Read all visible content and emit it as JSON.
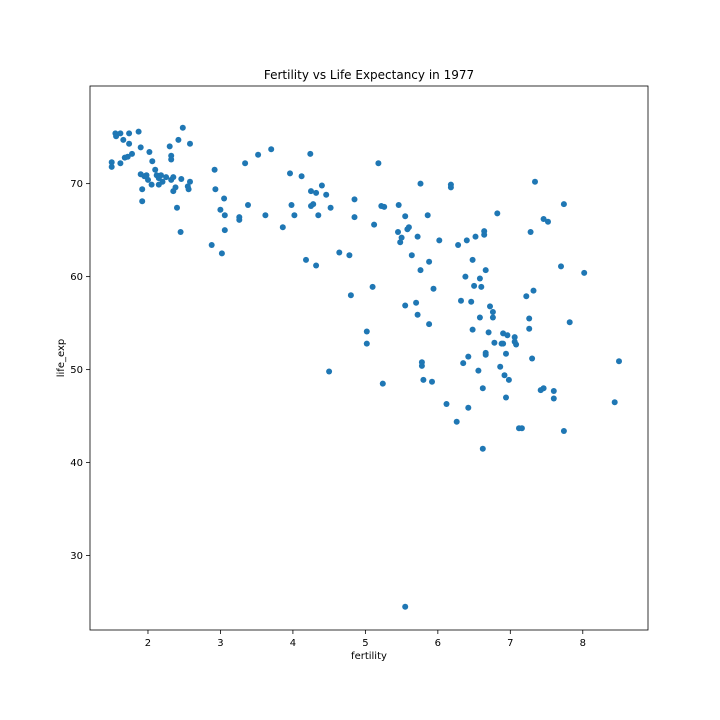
{
  "chart_data": {
    "type": "scatter",
    "title": "Fertility vs Life Expectancy in 1977",
    "xlabel": "fertility",
    "ylabel": "life_exp",
    "xlim": [
      1.2,
      8.9
    ],
    "ylim": [
      22,
      80.5
    ],
    "xticks": [
      2,
      3,
      4,
      5,
      6,
      7,
      8
    ],
    "yticks": [
      30,
      40,
      50,
      60,
      70
    ],
    "grid": false,
    "legend": false,
    "marker_color": "#1f77b4",
    "points": [
      [
        1.5,
        72.3
      ],
      [
        1.5,
        71.8
      ],
      [
        1.55,
        75.4
      ],
      [
        1.56,
        75.1
      ],
      [
        1.62,
        75.4
      ],
      [
        1.62,
        72.2
      ],
      [
        1.66,
        74.7
      ],
      [
        1.68,
        72.8
      ],
      [
        1.72,
        72.9
      ],
      [
        1.74,
        75.4
      ],
      [
        1.74,
        74.3
      ],
      [
        1.78,
        73.2
      ],
      [
        1.87,
        75.6
      ],
      [
        1.9,
        73.9
      ],
      [
        1.9,
        71.0
      ],
      [
        1.92,
        69.4
      ],
      [
        1.92,
        68.1
      ],
      [
        1.95,
        70.8
      ],
      [
        1.98,
        70.9
      ],
      [
        2.0,
        70.4
      ],
      [
        2.02,
        73.4
      ],
      [
        2.05,
        69.9
      ],
      [
        2.06,
        72.4
      ],
      [
        2.1,
        71.5
      ],
      [
        2.12,
        70.9
      ],
      [
        2.15,
        70.6
      ],
      [
        2.15,
        69.9
      ],
      [
        2.18,
        70.9
      ],
      [
        2.2,
        70.2
      ],
      [
        2.25,
        70.7
      ],
      [
        2.3,
        74.0
      ],
      [
        2.32,
        73.0
      ],
      [
        2.32,
        72.6
      ],
      [
        2.32,
        70.4
      ],
      [
        2.35,
        69.2
      ],
      [
        2.35,
        70.7
      ],
      [
        2.38,
        69.6
      ],
      [
        2.4,
        67.4
      ],
      [
        2.42,
        74.7
      ],
      [
        2.45,
        64.8
      ],
      [
        2.48,
        76.0
      ],
      [
        2.46,
        70.5
      ],
      [
        2.55,
        69.7
      ],
      [
        2.56,
        69.4
      ],
      [
        2.58,
        74.3
      ],
      [
        2.58,
        70.2
      ],
      [
        2.88,
        63.4
      ],
      [
        2.92,
        71.5
      ],
      [
        2.93,
        69.4
      ],
      [
        3.0,
        67.2
      ],
      [
        3.02,
        62.5
      ],
      [
        3.05,
        68.4
      ],
      [
        3.06,
        66.6
      ],
      [
        3.06,
        65.0
      ],
      [
        3.26,
        66.4
      ],
      [
        3.26,
        66.1
      ],
      [
        3.34,
        72.2
      ],
      [
        3.38,
        67.7
      ],
      [
        3.52,
        73.1
      ],
      [
        3.62,
        66.6
      ],
      [
        3.7,
        73.7
      ],
      [
        3.86,
        65.3
      ],
      [
        3.96,
        71.1
      ],
      [
        3.98,
        67.7
      ],
      [
        4.02,
        66.6
      ],
      [
        4.12,
        70.8
      ],
      [
        4.18,
        61.8
      ],
      [
        4.24,
        73.2
      ],
      [
        4.25,
        69.2
      ],
      [
        4.25,
        67.6
      ],
      [
        4.28,
        67.8
      ],
      [
        4.32,
        61.2
      ],
      [
        4.32,
        69.0
      ],
      [
        4.35,
        66.6
      ],
      [
        4.4,
        69.8
      ],
      [
        4.46,
        68.8
      ],
      [
        4.5,
        49.8
      ],
      [
        4.52,
        67.4
      ],
      [
        4.64,
        62.6
      ],
      [
        4.78,
        62.3
      ],
      [
        4.8,
        58.0
      ],
      [
        4.85,
        68.3
      ],
      [
        4.85,
        66.4
      ],
      [
        5.02,
        54.1
      ],
      [
        5.02,
        52.8
      ],
      [
        5.1,
        58.9
      ],
      [
        5.12,
        65.6
      ],
      [
        5.18,
        72.2
      ],
      [
        5.22,
        67.6
      ],
      [
        5.24,
        48.5
      ],
      [
        5.26,
        67.5
      ],
      [
        5.45,
        64.8
      ],
      [
        5.46,
        67.7
      ],
      [
        5.48,
        63.7
      ],
      [
        5.5,
        64.2
      ],
      [
        5.55,
        66.5
      ],
      [
        5.55,
        56.9
      ],
      [
        5.58,
        65.1
      ],
      [
        5.6,
        65.3
      ],
      [
        5.64,
        62.3
      ],
      [
        5.7,
        57.2
      ],
      [
        5.72,
        64.3
      ],
      [
        5.72,
        55.9
      ],
      [
        5.76,
        70.0
      ],
      [
        5.76,
        60.7
      ],
      [
        5.78,
        50.4
      ],
      [
        5.78,
        50.8
      ],
      [
        5.8,
        48.9
      ],
      [
        5.86,
        66.6
      ],
      [
        5.88,
        54.9
      ],
      [
        5.88,
        61.6
      ],
      [
        5.92,
        48.7
      ],
      [
        5.94,
        58.7
      ],
      [
        6.02,
        63.9
      ],
      [
        6.12,
        46.3
      ],
      [
        6.18,
        69.9
      ],
      [
        6.18,
        69.6
      ],
      [
        6.26,
        44.4
      ],
      [
        6.28,
        63.4
      ],
      [
        6.32,
        57.4
      ],
      [
        6.35,
        50.7
      ],
      [
        6.38,
        60.0
      ],
      [
        6.4,
        63.9
      ],
      [
        6.42,
        45.9
      ],
      [
        6.42,
        51.4
      ],
      [
        6.46,
        57.3
      ],
      [
        6.48,
        54.3
      ],
      [
        6.48,
        61.8
      ],
      [
        6.5,
        59.0
      ],
      [
        6.52,
        64.3
      ],
      [
        6.56,
        49.9
      ],
      [
        6.58,
        59.8
      ],
      [
        6.58,
        55.6
      ],
      [
        6.6,
        58.9
      ],
      [
        6.62,
        41.5
      ],
      [
        6.62,
        48.0
      ],
      [
        6.64,
        64.5
      ],
      [
        6.64,
        64.9
      ],
      [
        6.66,
        60.7
      ],
      [
        6.66,
        51.8
      ],
      [
        6.66,
        51.6
      ],
      [
        6.7,
        54.0
      ],
      [
        6.72,
        56.8
      ],
      [
        6.76,
        56.2
      ],
      [
        6.76,
        55.6
      ],
      [
        6.78,
        52.9
      ],
      [
        6.82,
        66.8
      ],
      [
        6.86,
        50.3
      ],
      [
        6.88,
        52.8
      ],
      [
        6.9,
        52.8
      ],
      [
        6.9,
        53.9
      ],
      [
        6.92,
        49.4
      ],
      [
        6.94,
        51.7
      ],
      [
        6.94,
        47.0
      ],
      [
        6.96,
        53.7
      ],
      [
        6.98,
        48.9
      ],
      [
        7.06,
        53.5
      ],
      [
        7.06,
        53.0
      ],
      [
        7.08,
        52.7
      ],
      [
        7.12,
        43.7
      ],
      [
        7.16,
        43.7
      ],
      [
        7.22,
        57.9
      ],
      [
        7.26,
        54.4
      ],
      [
        7.26,
        55.5
      ],
      [
        7.28,
        64.8
      ],
      [
        7.3,
        51.2
      ],
      [
        7.32,
        58.5
      ],
      [
        7.34,
        70.2
      ],
      [
        7.42,
        47.8
      ],
      [
        7.46,
        48.0
      ],
      [
        7.46,
        66.2
      ],
      [
        7.52,
        65.9
      ],
      [
        7.6,
        47.7
      ],
      [
        7.6,
        46.9
      ],
      [
        7.7,
        61.1
      ],
      [
        7.74,
        43.4
      ],
      [
        7.74,
        67.8
      ],
      [
        7.82,
        55.1
      ],
      [
        8.02,
        60.4
      ],
      [
        8.44,
        46.5
      ],
      [
        8.5,
        50.9
      ],
      [
        5.55,
        24.5
      ]
    ]
  }
}
